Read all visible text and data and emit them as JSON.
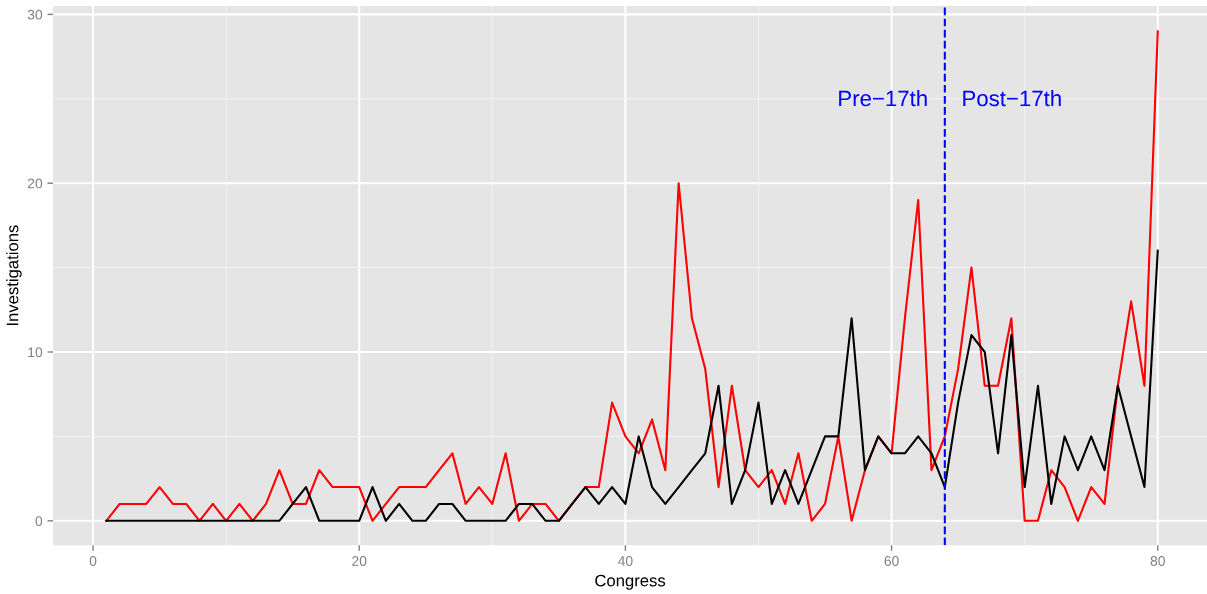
{
  "chart_data": {
    "type": "line",
    "xlabel": "Congress",
    "ylabel": "Investigations",
    "x": [
      1,
      2,
      3,
      4,
      5,
      6,
      7,
      8,
      9,
      10,
      11,
      12,
      13,
      14,
      15,
      16,
      17,
      18,
      19,
      20,
      21,
      22,
      23,
      24,
      25,
      26,
      27,
      28,
      29,
      30,
      31,
      32,
      33,
      34,
      35,
      36,
      37,
      38,
      39,
      40,
      41,
      42,
      43,
      44,
      45,
      46,
      47,
      48,
      49,
      50,
      51,
      52,
      53,
      54,
      55,
      56,
      57,
      58,
      59,
      60,
      61,
      62,
      63,
      64,
      65,
      66,
      67,
      68,
      69,
      70,
      71,
      72,
      73,
      74,
      75,
      76,
      77,
      78,
      79,
      80
    ],
    "series": [
      {
        "color": "#ff0000",
        "values": [
          0,
          1,
          1,
          1,
          2,
          1,
          1,
          0,
          1,
          0,
          1,
          0,
          1,
          3,
          1,
          1,
          3,
          2,
          2,
          2,
          0,
          1,
          2,
          2,
          2,
          3,
          4,
          1,
          2,
          1,
          4,
          0,
          1,
          1,
          0,
          1,
          2,
          2,
          7,
          5,
          4,
          6,
          3,
          20,
          12,
          9,
          2,
          8,
          3,
          2,
          3,
          1,
          4,
          0,
          1,
          5,
          0,
          3,
          5,
          4,
          12,
          19,
          3,
          5,
          9,
          15,
          8,
          8,
          12,
          0,
          0,
          3,
          2,
          0,
          2,
          1,
          8,
          13,
          8,
          29
        ]
      },
      {
        "color": "#000000",
        "values": [
          0,
          0,
          0,
          0,
          0,
          0,
          0,
          0,
          0,
          0,
          0,
          0,
          0,
          0,
          1,
          2,
          0,
          0,
          0,
          0,
          2,
          0,
          1,
          0,
          0,
          1,
          1,
          0,
          0,
          0,
          0,
          1,
          1,
          0,
          0,
          1,
          2,
          1,
          2,
          1,
          5,
          2,
          1,
          2,
          3,
          4,
          8,
          1,
          3,
          7,
          1,
          3,
          1,
          3,
          5,
          5,
          12,
          3,
          5,
          4,
          4,
          5,
          4,
          2,
          7,
          11,
          10,
          4,
          11,
          2,
          8,
          1,
          5,
          3,
          5,
          3,
          8,
          5,
          2,
          16
        ]
      }
    ],
    "xlim": [
      -3,
      83.7
    ],
    "ylim": [
      -1.45,
      30.5
    ],
    "xticks": [
      0,
      20,
      40,
      60,
      80
    ],
    "yticks": [
      0,
      10,
      20,
      30
    ],
    "grid": true,
    "line_style": "solid",
    "marker": "none",
    "ref_lines": [
      {
        "axis": "x",
        "value": 64,
        "color": "#0000ff",
        "line_style": "dashed"
      }
    ],
    "annotations": [
      "Pre−17th",
      "Post−17th"
    ]
  }
}
